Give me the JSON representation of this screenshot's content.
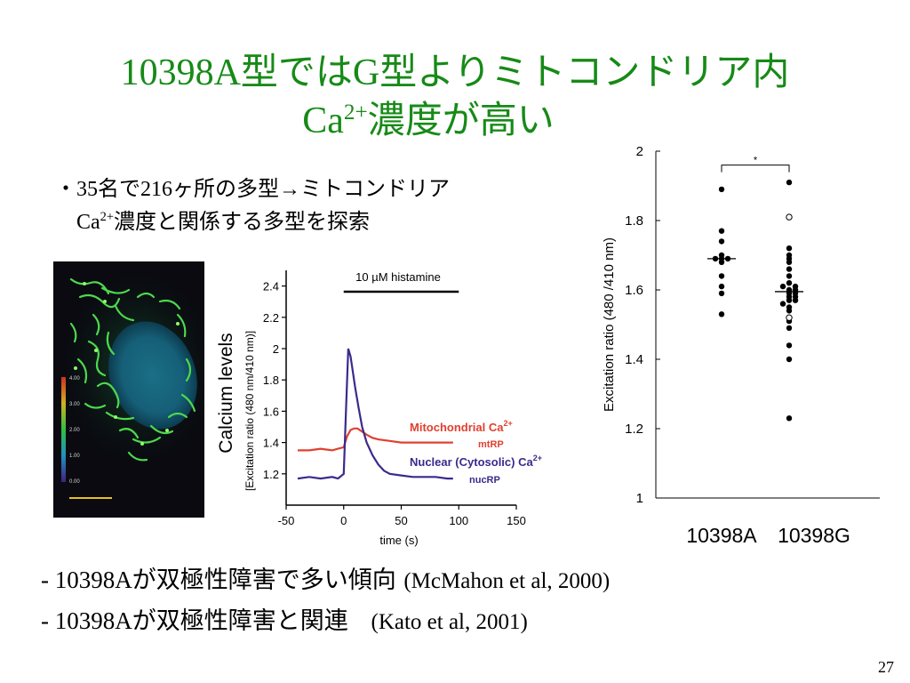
{
  "title": {
    "line1": "10398A型ではG型よりミトコンドリア内",
    "line2_main": "Ca",
    "line2_sup": "2+",
    "line2_rest": "濃度が高い"
  },
  "bullet": {
    "marker": "・",
    "line1": "35名で216ヶ所の多型→ミトコンドリア",
    "line2_main": "Ca",
    "line2_sup": "2+",
    "line2_rest": "濃度と関係する多型を探索"
  },
  "cell_image": {
    "colorbar_labels": [
      "4.00",
      "3.00",
      "2.00",
      "1.00",
      "0.00"
    ]
  },
  "chart_data": [
    {
      "type": "line",
      "title": "10 µM histamine",
      "xlabel": "time (s)",
      "ylabel": "Calcium levels",
      "ylabel2": "[Excitation ratio (480 nm/410 nm)]",
      "xlim": [
        -50,
        150
      ],
      "ylim": [
        1.0,
        2.5
      ],
      "xticks": [
        "-50",
        "0",
        "50",
        "100",
        "150"
      ],
      "yticks": [
        "1.2",
        "1.4",
        "1.6",
        "1.8",
        "2",
        "2.2",
        "2.4"
      ],
      "stimulus_bar": [
        0,
        100
      ],
      "series": [
        {
          "name": "mtRP",
          "legend": "Mitochondrial Ca",
          "legend_sup": "2+",
          "color": "#e04030",
          "x": [
            -40,
            -30,
            -20,
            -10,
            -5,
            0,
            3,
            6,
            9,
            12,
            16,
            20,
            25,
            30,
            40,
            50,
            60,
            70,
            80,
            90,
            95
          ],
          "y": [
            1.35,
            1.35,
            1.36,
            1.35,
            1.36,
            1.37,
            1.44,
            1.48,
            1.49,
            1.49,
            1.47,
            1.45,
            1.43,
            1.42,
            1.41,
            1.4,
            1.4,
            1.4,
            1.4,
            1.4,
            1.4
          ]
        },
        {
          "name": "nucRP",
          "legend": "Nuclear (Cytosolic) Ca",
          "legend_sup": "2+",
          "color": "#3a2a8c",
          "x": [
            -40,
            -30,
            -20,
            -10,
            -5,
            0,
            2,
            4,
            6,
            8,
            10,
            13,
            16,
            20,
            25,
            30,
            35,
            40,
            50,
            60,
            70,
            80,
            90,
            95
          ],
          "y": [
            1.17,
            1.18,
            1.17,
            1.18,
            1.17,
            1.2,
            1.6,
            2.0,
            1.95,
            1.85,
            1.75,
            1.62,
            1.5,
            1.4,
            1.32,
            1.26,
            1.22,
            1.2,
            1.19,
            1.18,
            1.18,
            1.18,
            1.17,
            1.17
          ]
        }
      ]
    },
    {
      "type": "scatter",
      "ylabel": "Excitation ratio (480 /410 nm)",
      "ylim": [
        1,
        2
      ],
      "yticks": [
        "1",
        "1.2",
        "1.4",
        "1.6",
        "1.8",
        "2"
      ],
      "categories": [
        "10398A",
        "10398G"
      ],
      "significance_marker": "*",
      "groups": [
        {
          "name": "10398A",
          "median": 1.69,
          "filled": [
            1.89,
            1.77,
            1.74,
            1.7,
            1.69,
            1.69,
            1.68,
            1.69,
            1.64,
            1.61,
            1.59,
            1.53
          ]
        },
        {
          "name": "10398G",
          "median": 1.595,
          "filled": [
            1.91,
            1.72,
            1.7,
            1.69,
            1.68,
            1.66,
            1.64,
            1.62,
            1.61,
            1.61,
            1.6,
            1.6,
            1.59,
            1.59,
            1.58,
            1.58,
            1.57,
            1.57,
            1.56,
            1.55,
            1.54,
            1.51,
            1.49,
            1.44,
            1.4,
            1.23
          ],
          "open": [
            1.81,
            1.52
          ]
        }
      ]
    }
  ],
  "bottom": {
    "line1_prefix": "- 10398A",
    "line1_text": "が双極性障害で多い傾向",
    "line1_ref": "(McMahon et al, 2000)",
    "line2_prefix": "- 10398A",
    "line2_text": "が双極性障害と関連",
    "line2_ref": "(Kato et al, 2001)"
  },
  "page_number": "27"
}
